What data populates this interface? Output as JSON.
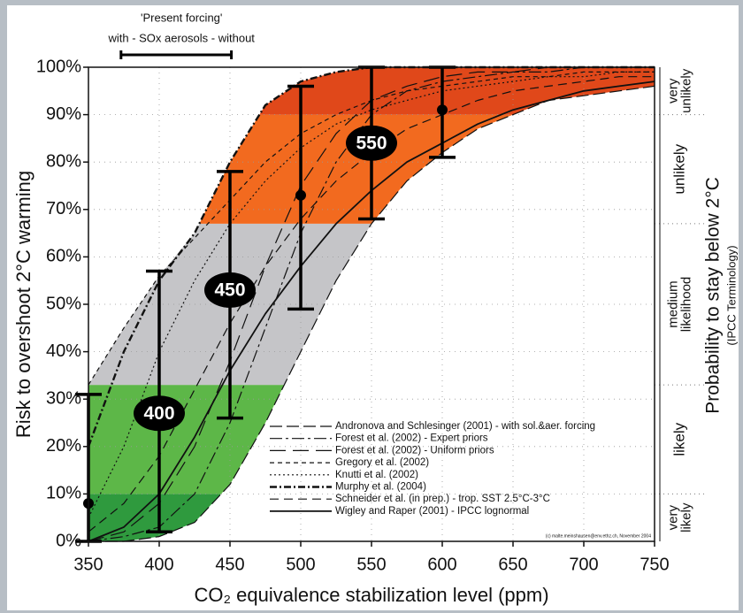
{
  "chart_data": {
    "type": "line",
    "annotation": {
      "title": "'Present forcing'",
      "subtitle": "with - SOx aerosols - without",
      "range": [
        373,
        451
      ]
    },
    "x_label": "CO₂ equivalence stabilization level (ppm)",
    "y_label": "Risk to overshoot 2°C warming",
    "y2_label": "Probability to stay below 2°C",
    "y2_sublabel": "(IPCC Terminology)",
    "credit": "(c) malte.meinshausen@env.ethz.ch, November 2004",
    "xlim": [
      350,
      750
    ],
    "xticks": [
      350,
      400,
      450,
      500,
      550,
      600,
      650,
      700,
      750
    ],
    "ylim": [
      0,
      100
    ],
    "yticks": [
      {
        "value": 0,
        "label": "0%"
      },
      {
        "value": 10,
        "label": "10%"
      },
      {
        "value": 20,
        "label": "20%"
      },
      {
        "value": 30,
        "label": "30%"
      },
      {
        "value": 40,
        "label": "40%"
      },
      {
        "value": 50,
        "label": "50%"
      },
      {
        "value": 60,
        "label": "60%"
      },
      {
        "value": 70,
        "label": "70%"
      },
      {
        "value": 80,
        "label": "80%"
      },
      {
        "value": 90,
        "label": "90%"
      },
      {
        "value": 100,
        "label": "100%"
      }
    ],
    "grid": true,
    "zones": [
      {
        "label": [
          "very",
          "likely"
        ],
        "from": 0,
        "to": 10,
        "color": "#2f9a3e"
      },
      {
        "label": [
          "likely"
        ],
        "from": 10,
        "to": 33,
        "color": "#5db748"
      },
      {
        "label": [
          "medium",
          "likelihood"
        ],
        "from": 33,
        "to": 67,
        "color": "#c5c5c8"
      },
      {
        "label": [
          "unlikely"
        ],
        "from": 67,
        "to": 90,
        "color": "#f26a1f"
      },
      {
        "label": [
          "very",
          "unlikely"
        ],
        "from": 90,
        "to": 100,
        "color": "#e0481a"
      }
    ],
    "x": [
      350,
      375,
      400,
      425,
      450,
      475,
      500,
      525,
      550,
      575,
      600,
      625,
      650,
      675,
      700,
      725,
      750
    ],
    "series": [
      {
        "name": "Andronova and Schlesinger (2001) - with sol.&aer. forcing",
        "color": "#111111",
        "dash": "14,5",
        "width": 1.2,
        "values": [
          0,
          0,
          1,
          4,
          12,
          25,
          40,
          55,
          67,
          76,
          82,
          87,
          90,
          93,
          94,
          95,
          96
        ]
      },
      {
        "name": "Forest et al. (2002) - Expert priors",
        "color": "#111111",
        "dash": "14,4,3,4",
        "width": 1.2,
        "values": [
          0,
          1,
          3,
          10,
          25,
          45,
          65,
          80,
          90,
          95,
          97,
          98,
          99,
          99,
          100,
          100,
          100
        ]
      },
      {
        "name": "Forest et al. (2002) - Uniform priors",
        "color": "#111111",
        "dash": "18,8",
        "width": 1.2,
        "values": [
          0,
          2,
          8,
          20,
          38,
          58,
          75,
          86,
          93,
          96,
          98,
          99,
          99,
          100,
          100,
          100,
          100
        ]
      },
      {
        "name": "Gregory et al. (2002)",
        "color": "#111111",
        "dash": "5,4",
        "width": 1.2,
        "values": [
          33,
          45,
          56,
          64,
          72,
          80,
          86,
          90,
          93,
          95,
          96,
          97,
          98,
          98,
          99,
          99,
          99
        ]
      },
      {
        "name": "Knutti et al. (2002)",
        "color": "#111111",
        "dash": "2,3",
        "width": 1.2,
        "values": [
          5,
          20,
          40,
          55,
          67,
          76,
          83,
          88,
          91,
          93,
          95,
          96,
          97,
          98,
          98,
          99,
          99
        ]
      },
      {
        "name": "Murphy et al. (2004)",
        "color": "#111111",
        "dash": "8,3,2,3",
        "width": 2.4,
        "values": [
          20,
          40,
          55,
          65,
          80,
          92,
          97,
          99,
          100,
          100,
          100,
          100,
          100,
          100,
          100,
          100,
          100
        ]
      },
      {
        "name": "Schneider et al. (in prep.) - trop. SST 2.5°C-3°C",
        "color": "#111111",
        "dash": "10,6",
        "width": 1.2,
        "values": [
          2,
          8,
          18,
          32,
          46,
          58,
          68,
          76,
          82,
          87,
          90,
          93,
          95,
          96,
          97,
          98,
          98
        ]
      },
      {
        "name": "Wigley and Raper (2001) - IPCC lognormal",
        "color": "#111111",
        "dash": "none",
        "width": 1.8,
        "values": [
          0,
          3,
          10,
          22,
          36,
          48,
          58,
          67,
          74,
          80,
          84,
          88,
          91,
          93,
          95,
          96,
          97
        ]
      }
    ],
    "error_bars": [
      {
        "x": 350,
        "low": 0,
        "high": 31,
        "median": 8
      },
      {
        "x": 400,
        "low": 2,
        "high": 57,
        "median": 27,
        "label": "400"
      },
      {
        "x": 450,
        "low": 26,
        "high": 78,
        "median": 53,
        "label": "450"
      },
      {
        "x": 500,
        "low": 49,
        "high": 96,
        "median": 73
      },
      {
        "x": 550,
        "low": 68,
        "high": 100,
        "median": 84,
        "label": "550"
      },
      {
        "x": 600,
        "low": 81,
        "high": 100,
        "median": 91
      }
    ]
  }
}
